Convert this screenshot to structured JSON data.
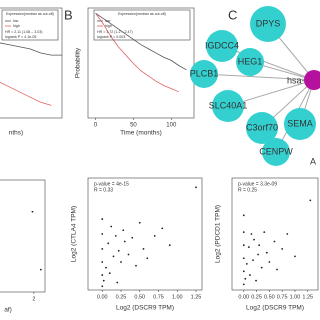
{
  "panel_a": {
    "type": "km",
    "legend_title": "Expression(median as cut-off)",
    "hr": "HR = 2.11 (1.08 – 3.03)",
    "logrank": "logrank P = 4.1e-05",
    "xlabel": "nths)",
    "xlim": [
      60,
      150
    ],
    "ylim": [
      0,
      1.05
    ],
    "series": [
      {
        "name": "low",
        "color": "#555555",
        "x": [
          60,
          75,
          90,
          105,
          120,
          135,
          150
        ],
        "y": [
          0.72,
          0.7,
          0.68,
          0.66,
          0.62,
          0.6,
          0.6
        ]
      },
      {
        "name": "high",
        "color": "#e06060",
        "x": [
          60,
          75,
          90,
          105,
          120,
          135
        ],
        "y": [
          0.35,
          0.3,
          0.25,
          0.2,
          0.15,
          0.12
        ]
      }
    ]
  },
  "panel_b": {
    "type": "km",
    "label": "B",
    "legend_title": "Expression(median as cut-off)",
    "hr": "HR = 1.72 (1.2 – 2.47)",
    "logrank": "logrank P = 0.003",
    "ylabel": "Probability",
    "xlabel": "Time (months)",
    "xticks": [
      0,
      50,
      100
    ],
    "xlim": [
      -10,
      130
    ],
    "ylim": [
      0,
      1.05
    ],
    "series": [
      {
        "name": "low",
        "color": "#555555",
        "x": [
          0,
          10,
          20,
          30,
          40,
          50,
          60,
          70,
          80,
          90,
          100,
          110,
          120
        ],
        "y": [
          1,
          0.95,
          0.9,
          0.85,
          0.8,
          0.75,
          0.7,
          0.66,
          0.62,
          0.58,
          0.55,
          0.5,
          0.46
        ]
      },
      {
        "name": "high",
        "color": "#e06060",
        "x": [
          0,
          10,
          20,
          30,
          40,
          50,
          60,
          70,
          80,
          90,
          100,
          110
        ],
        "y": [
          1,
          0.9,
          0.78,
          0.68,
          0.6,
          0.52,
          0.45,
          0.4,
          0.35,
          0.31,
          0.28,
          0.25
        ]
      }
    ]
  },
  "panel_c": {
    "label": "C",
    "center": "hsa-",
    "nodes": [
      "DPYS",
      "IGDCC4",
      "HEG1",
      "PLCB1",
      "SLC40A1",
      "C3orf70",
      "SEMA",
      "CENPW"
    ],
    "edge_label": "A"
  },
  "panel_d": {
    "type": "scatter",
    "xlabel": "af)",
    "xticks": [
      2
    ],
    "xlim": [
      -0.5,
      2.8
    ],
    "ylim": [
      0,
      6
    ],
    "x": [
      1.9,
      2.5
    ],
    "y": [
      4.3,
      1.2
    ]
  },
  "panel_e": {
    "type": "scatter",
    "pvalue": "p-value = 4e-15",
    "r": "R = 0.33",
    "ylabel": "Log2 (CTLA4 TPM)",
    "xlabel": "Log2 (DSCR9 TPM)",
    "xticks": [
      {
        "value": 0,
        "label": "0.00"
      },
      0.25,
      {
        "value": 0.5,
        "label": "0.50"
      },
      0.75,
      {
        "value": 1,
        "label": "1.00"
      },
      1.25
    ],
    "xlim": [
      -0.19,
      1.33
    ],
    "ylim": [
      0,
      6
    ],
    "x": [
      0,
      0,
      0,
      0,
      0,
      0,
      0.02,
      0.05,
      0.08,
      0.1,
      0.12,
      0.15,
      0.18,
      0.2,
      0.22,
      0.25,
      0.28,
      0.3,
      0.35,
      0.4,
      0.45,
      0.5,
      0.55,
      0.6,
      0.7,
      0.8,
      0.9,
      1.25
    ],
    "y": [
      0.2,
      0.8,
      1.5,
      2.2,
      3.0,
      3.8,
      0.5,
      1.2,
      2.5,
      0.9,
      3.4,
      1.8,
      2.9,
      0.4,
      2.1,
      1.5,
      3.2,
      2.6,
      1.9,
      2.8,
      1.3,
      3.6,
      2.2,
      1.7,
      2.9,
      3.3,
      2.4,
      5.5
    ]
  },
  "panel_f": {
    "type": "scatter",
    "pvalue": "p-value = 3.3e-09",
    "r": "R = 0.25",
    "ylabel": "Log2 (PDCD1 TPM)",
    "xlabel": "Log2 (DSCR9 TPM)",
    "xticks": [
      {
        "value": 0,
        "label": "0.00"
      },
      0.25,
      {
        "value": 0.5,
        "label": "0.50"
      },
      0.75,
      {
        "value": 1,
        "label": "1.00"
      },
      1.25
    ],
    "xlim": [
      -0.23,
      1.45
    ],
    "ylim": [
      0,
      6
    ],
    "x": [
      0,
      0,
      0,
      0,
      0,
      0,
      0.03,
      0.06,
      0.1,
      0.12,
      0.15,
      0.18,
      0.2,
      0.24,
      0.28,
      0.3,
      0.35,
      0.4,
      0.45,
      0.5,
      0.6,
      0.65,
      0.75,
      0.85,
      1.0,
      1.3
    ],
    "y": [
      0.3,
      1.0,
      1.7,
      2.4,
      3.1,
      4.0,
      0.6,
      1.4,
      2.3,
      0.8,
      3.0,
      1.6,
      2.7,
      0.5,
      1.9,
      2.4,
      1.2,
      3.1,
      2.0,
      1.5,
      2.6,
      1.1,
      2.2,
      3.0,
      1.8,
      4.8
    ]
  }
}
